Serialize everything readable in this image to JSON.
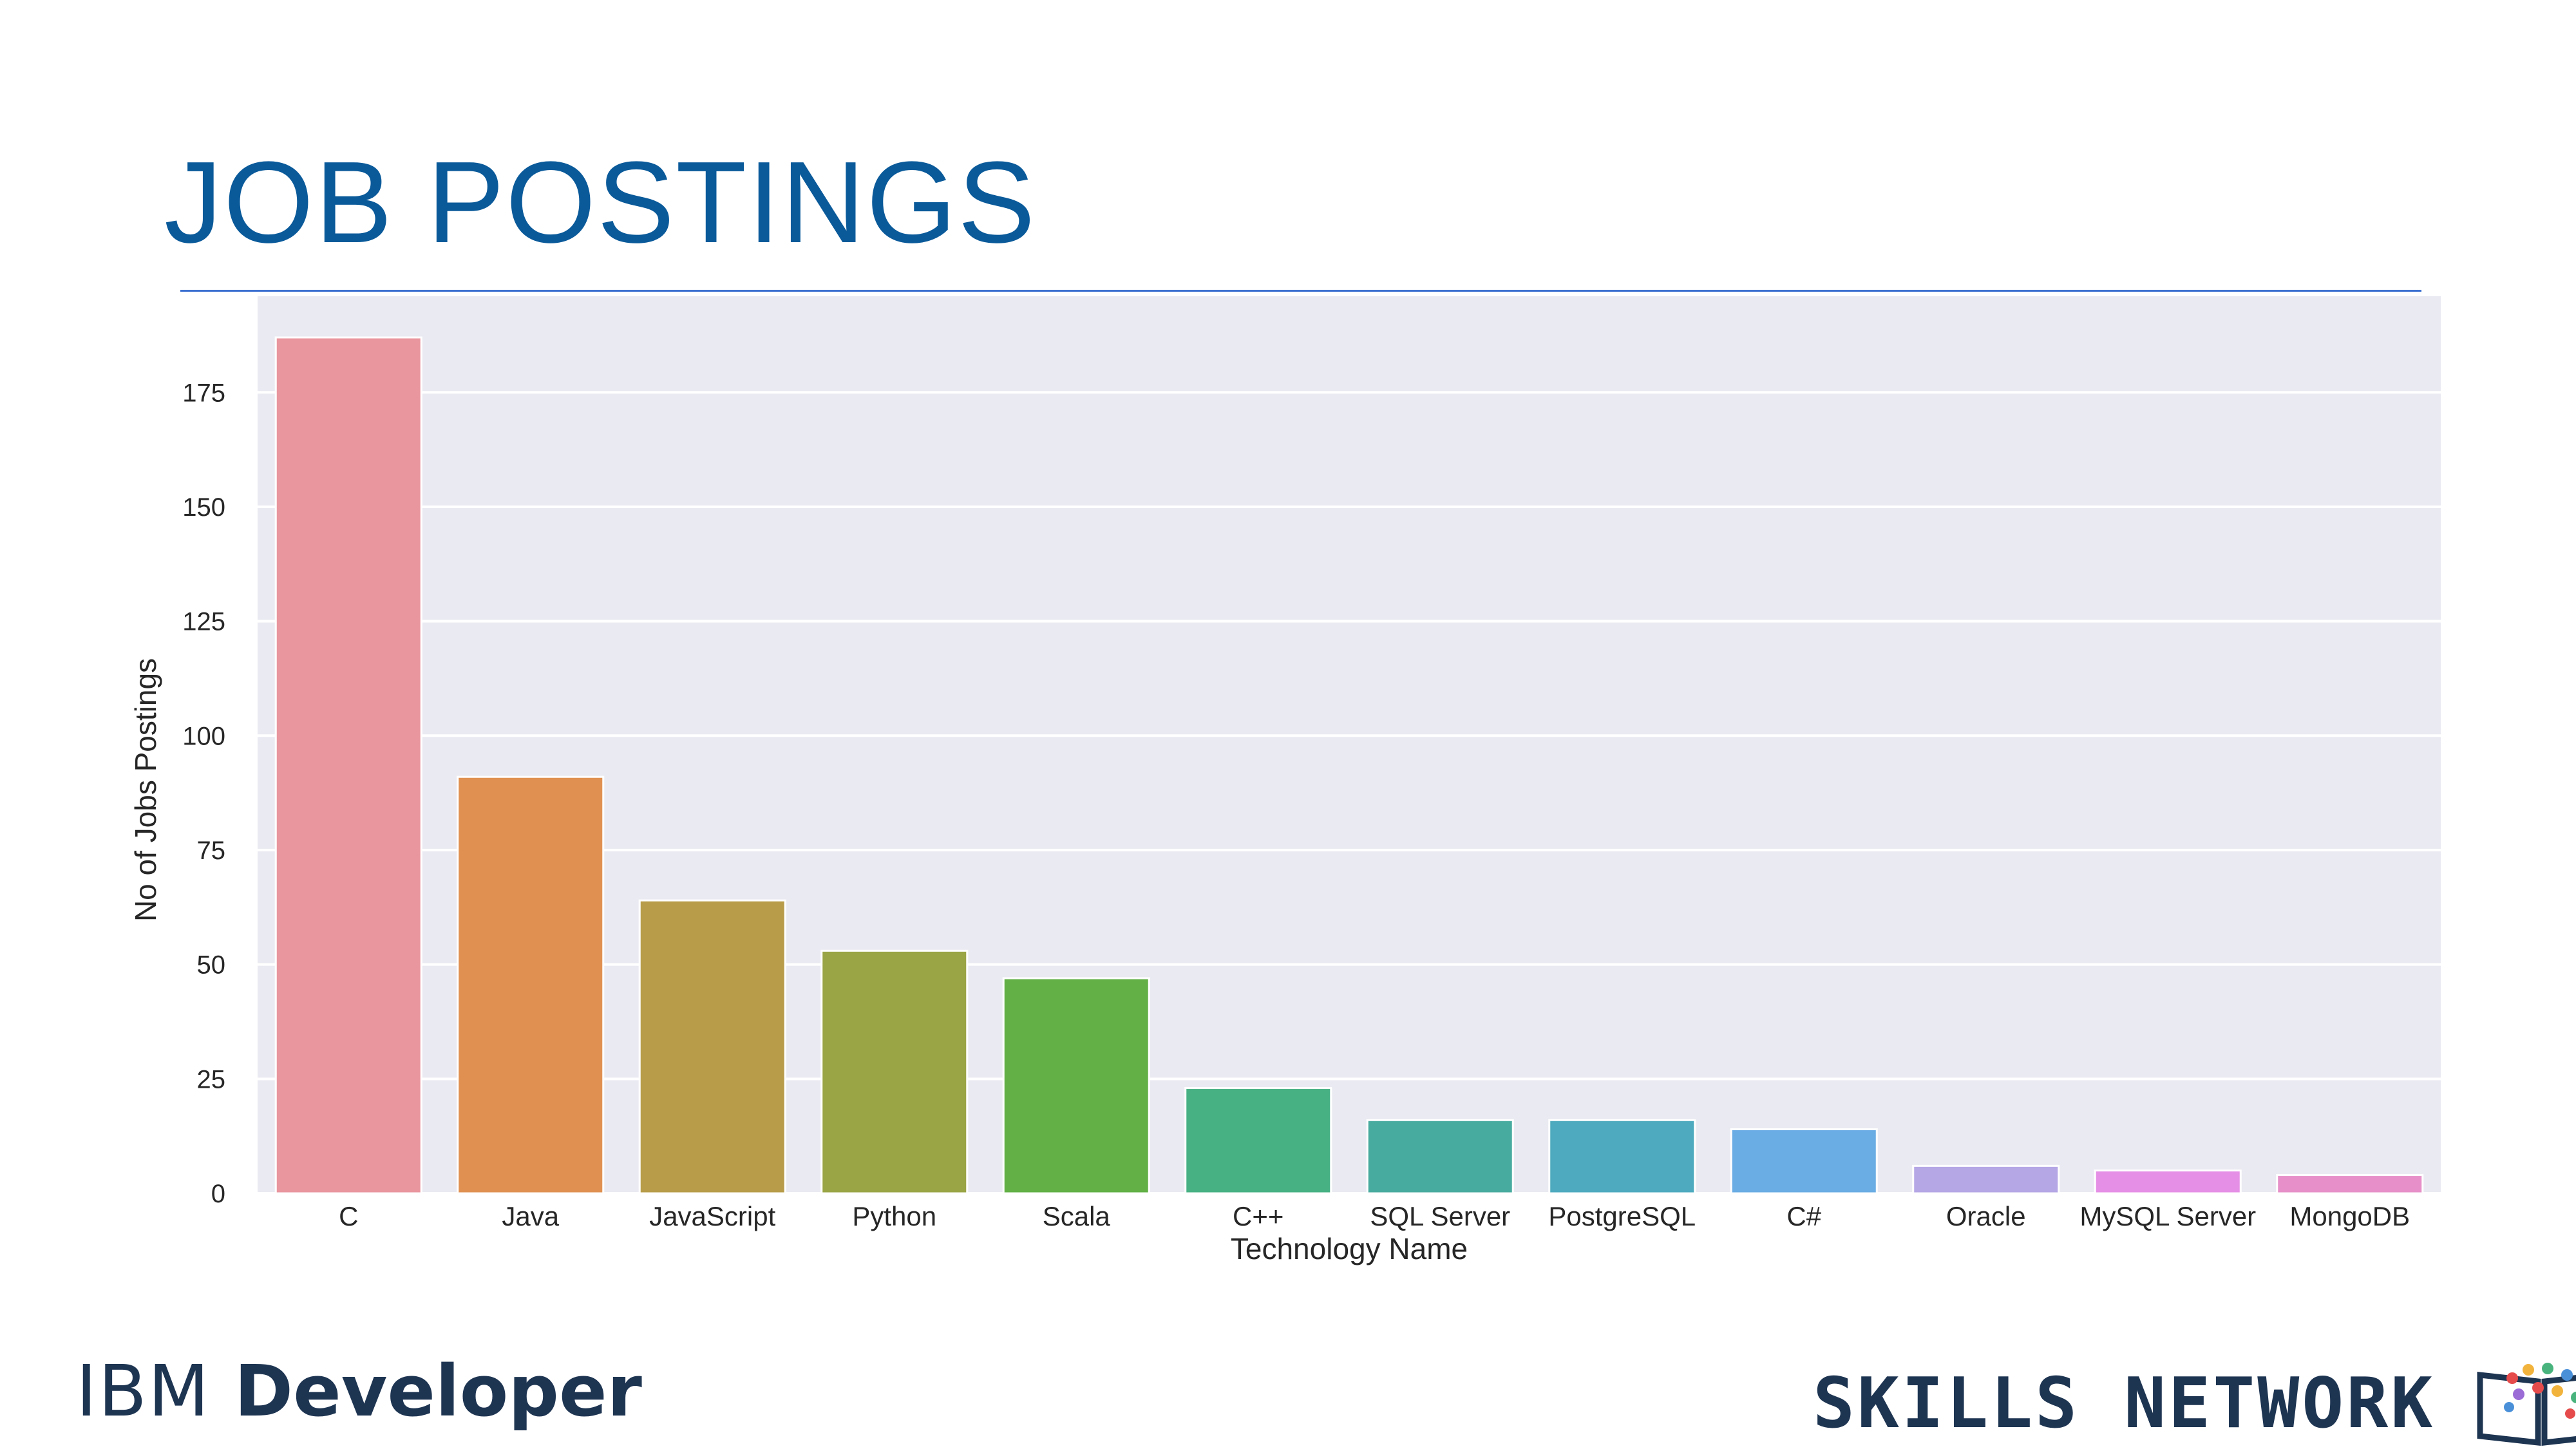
{
  "slide": {
    "title": "JOB POSTINGS",
    "footer_left": {
      "part1": "IBM ",
      "part2": "Developer"
    },
    "footer_right": "SKILLS NETWORK"
  },
  "chart_data": {
    "type": "bar",
    "title": "",
    "xlabel": "Technology Name",
    "ylabel": "No of Jobs Postings",
    "categories": [
      "C",
      "Java",
      "JavaScript",
      "Python",
      "Scala",
      "C++",
      "SQL Server",
      "PostgreSQL",
      "C#",
      "Oracle",
      "MySQL Server",
      "MongoDB"
    ],
    "values": [
      187,
      91,
      64,
      53,
      47,
      23,
      16,
      16,
      14,
      6,
      5,
      4
    ],
    "colors": [
      "#e9969f",
      "#e09152",
      "#b89c49",
      "#9aa546",
      "#62b046",
      "#47b184",
      "#48ab9f",
      "#4eaabe",
      "#6aace4",
      "#b5a6e6",
      "#e58fe6",
      "#e68fc8"
    ],
    "yticks": [
      0,
      25,
      50,
      75,
      100,
      125,
      150,
      175
    ],
    "ylim": [
      0,
      196
    ],
    "grid": true,
    "legend": "none",
    "background": "#eaeaf2"
  }
}
